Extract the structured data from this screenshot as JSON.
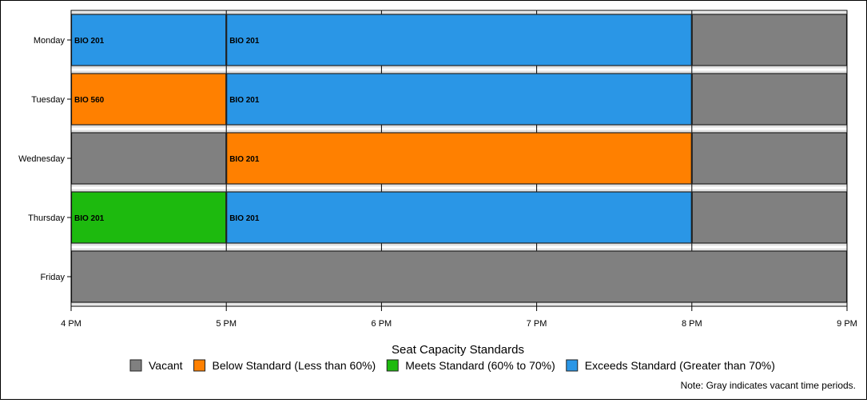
{
  "chart_data": {
    "type": "bar",
    "orientation": "horizontal-timeline",
    "days": [
      "Monday",
      "Tuesday",
      "Wednesday",
      "Thursday",
      "Friday"
    ],
    "x_ticks": [
      "4 PM",
      "5 PM",
      "6 PM",
      "7 PM",
      "8 PM",
      "9 PM"
    ],
    "xlim": [
      16,
      21
    ],
    "segments": [
      {
        "day": "Monday",
        "start": 16,
        "end": 17,
        "label": "BIO 201",
        "status": "exceeds"
      },
      {
        "day": "Monday",
        "start": 17,
        "end": 20,
        "label": "BIO 201",
        "status": "exceeds"
      },
      {
        "day": "Monday",
        "start": 20,
        "end": 21,
        "label": "",
        "status": "vacant"
      },
      {
        "day": "Tuesday",
        "start": 16,
        "end": 17,
        "label": "BIO 560",
        "status": "below"
      },
      {
        "day": "Tuesday",
        "start": 17,
        "end": 20,
        "label": "BIO 201",
        "status": "exceeds"
      },
      {
        "day": "Tuesday",
        "start": 20,
        "end": 21,
        "label": "",
        "status": "vacant"
      },
      {
        "day": "Wednesday",
        "start": 16,
        "end": 17,
        "label": "",
        "status": "vacant"
      },
      {
        "day": "Wednesday",
        "start": 17,
        "end": 20,
        "label": "BIO 201",
        "status": "below"
      },
      {
        "day": "Wednesday",
        "start": 20,
        "end": 21,
        "label": "",
        "status": "vacant"
      },
      {
        "day": "Thursday",
        "start": 16,
        "end": 17,
        "label": "BIO 201",
        "status": "meets"
      },
      {
        "day": "Thursday",
        "start": 17,
        "end": 20,
        "label": "BIO 201",
        "status": "exceeds"
      },
      {
        "day": "Thursday",
        "start": 20,
        "end": 21,
        "label": "",
        "status": "vacant"
      },
      {
        "day": "Friday",
        "start": 16,
        "end": 21,
        "label": "",
        "status": "vacant"
      }
    ],
    "legend": {
      "title": "Seat Capacity Standards",
      "position": "bottom",
      "items": [
        {
          "key": "vacant",
          "label": "Vacant",
          "color": "#808080"
        },
        {
          "key": "below",
          "label": "Below Standard (Less than 60%)",
          "color": "#ff8000"
        },
        {
          "key": "meets",
          "label": "Meets Standard (60% to 70%)",
          "color": "#1dba0e"
        },
        {
          "key": "exceeds",
          "label": "Exceeds Standard (Greater than 70%)",
          "color": "#2a96e6"
        }
      ]
    },
    "grid": true,
    "note": "Note: Gray indicates vacant time periods."
  }
}
